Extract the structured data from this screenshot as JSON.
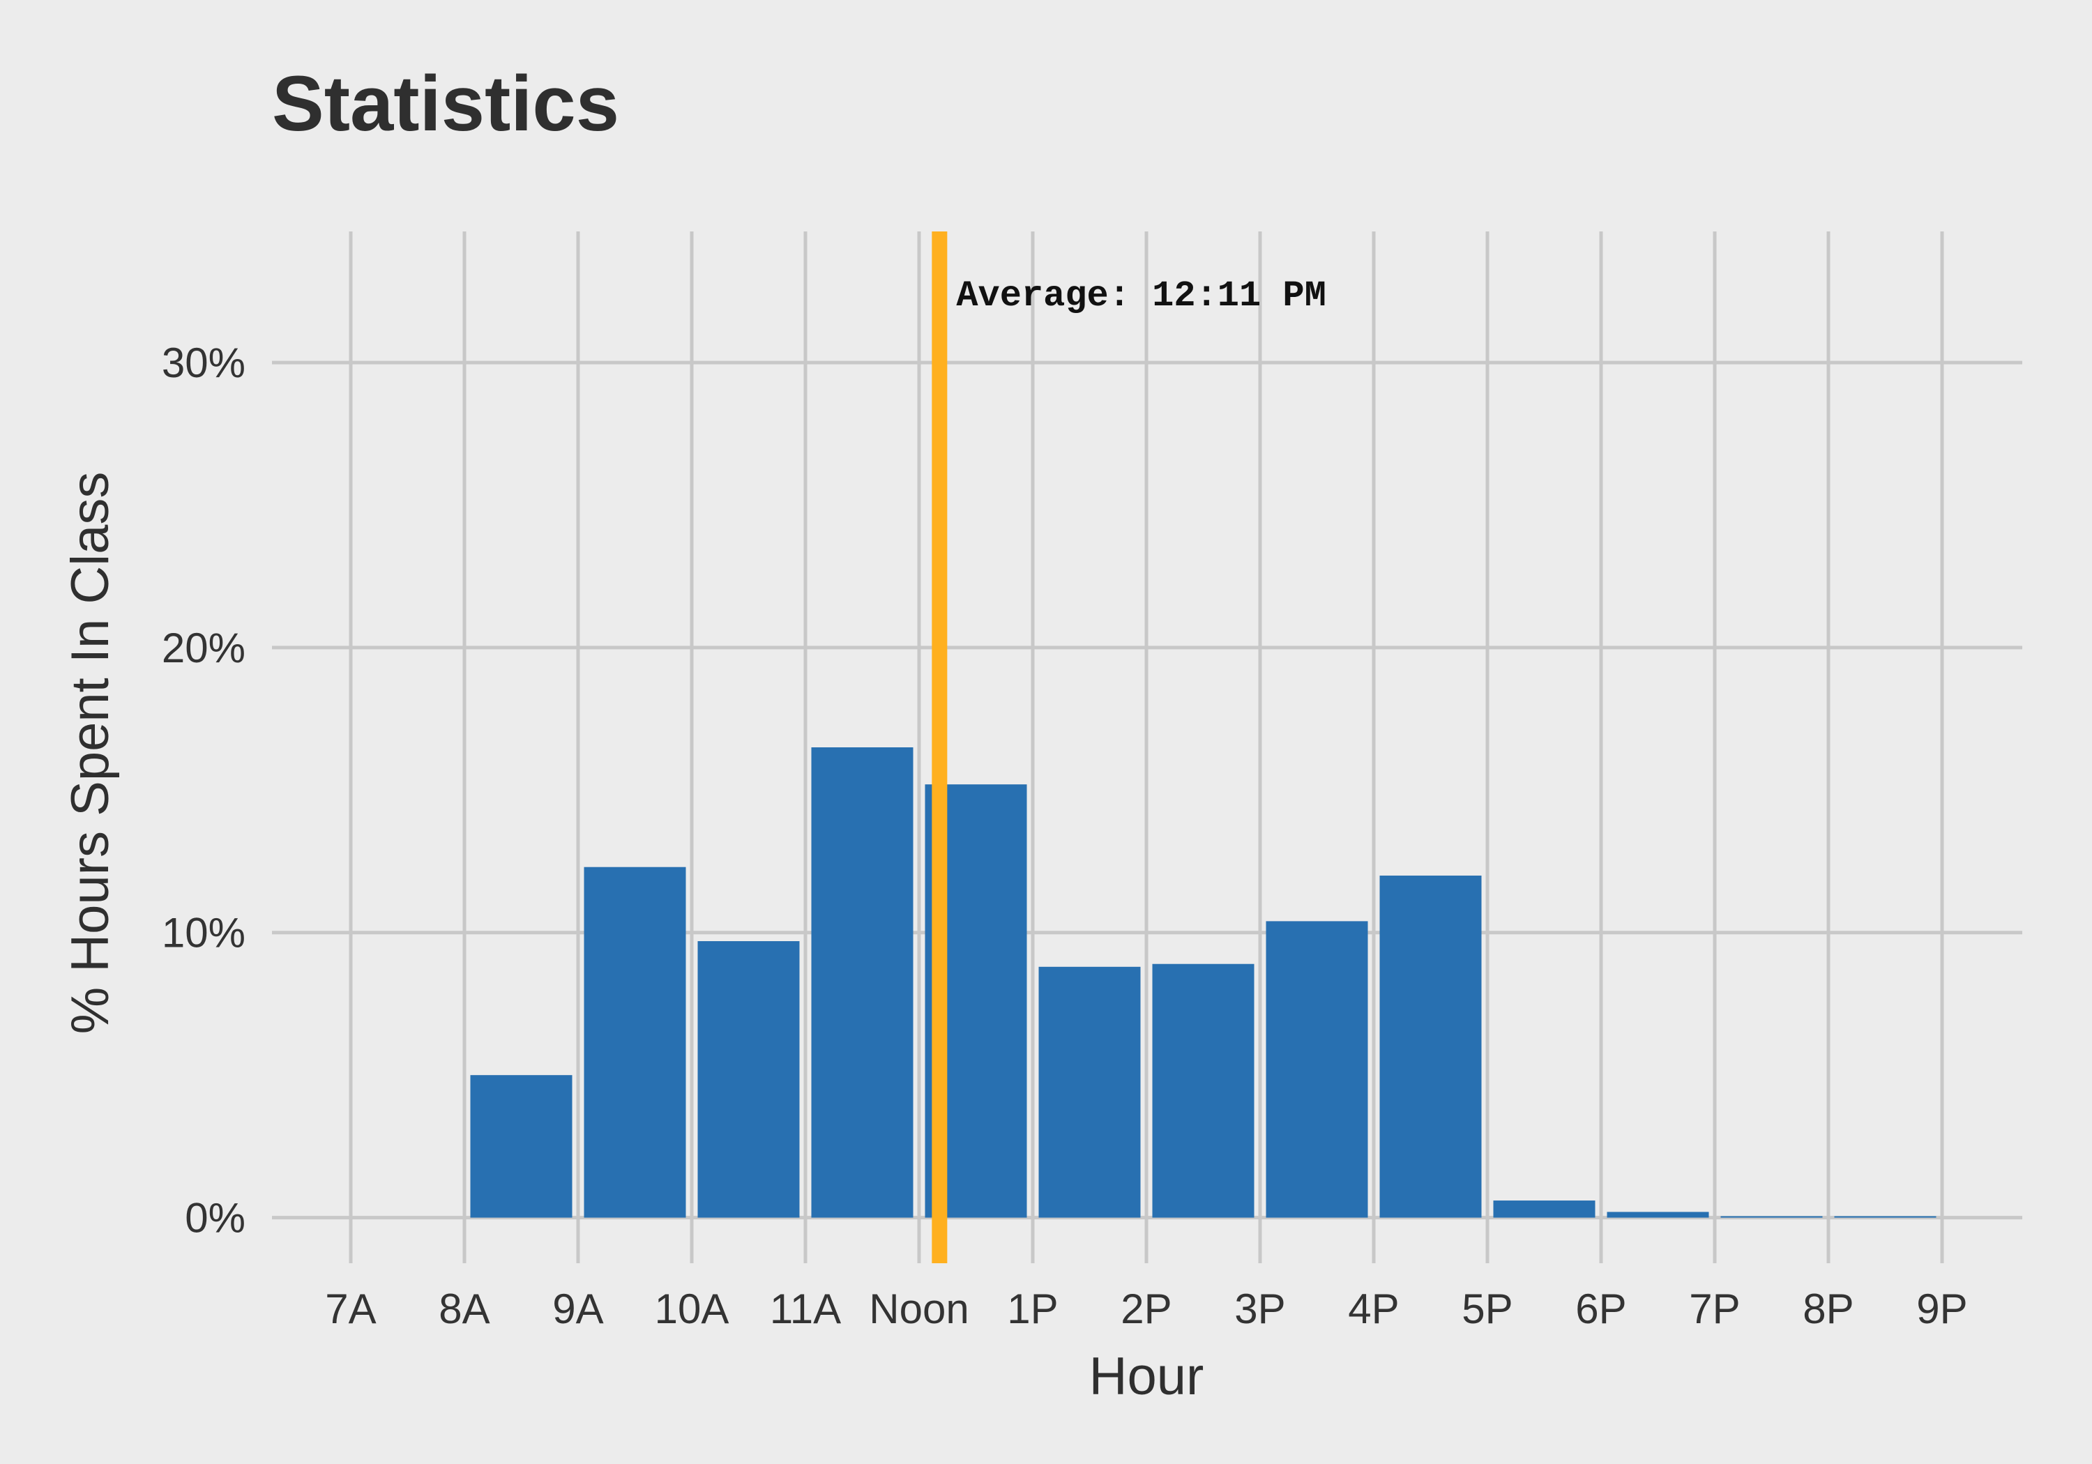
{
  "chart_data": {
    "type": "bar",
    "title": "Statistics",
    "xlabel": "Hour",
    "ylabel": "% Hours Spent In Class",
    "categories": [
      "7A",
      "8A",
      "9A",
      "10A",
      "11A",
      "Noon",
      "1P",
      "2P",
      "3P",
      "4P",
      "5P",
      "6P",
      "7P",
      "8P",
      "9P"
    ],
    "values": [
      0,
      5.0,
      12.3,
      9.7,
      16.5,
      15.2,
      8.8,
      8.9,
      10.4,
      12.0,
      0.6,
      0.2,
      0.05,
      0.05,
      0
    ],
    "bar_offset_hours": 0.5,
    "ylim": [
      -1.6,
      34.6
    ],
    "yticks": [
      0,
      10,
      20,
      30
    ],
    "ytick_labels": [
      "0%",
      "10%",
      "20%",
      "30%"
    ],
    "grid": true,
    "bar_color": "#2870b1",
    "average_line": {
      "hour_value": 12.18,
      "label": "Average: 12:11 PM",
      "color": "#ffb01f"
    }
  }
}
